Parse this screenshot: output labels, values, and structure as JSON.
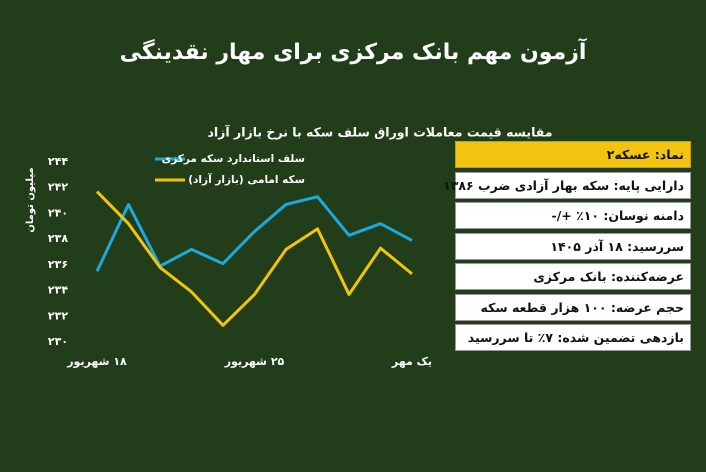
{
  "header": {
    "title": "آزمون مهم بانک مرکزی برای مهار نقدینگی"
  },
  "chart_data": {
    "type": "line",
    "title": "مقایسه قیمت معاملات اوراق سلف سکه با نرخ بازار آزاد",
    "y_label": "میلیون تومان",
    "categories": [
      "۱۸ شهریور",
      null,
      null,
      null,
      null,
      "۲۵ شهریور",
      null,
      null,
      null,
      null,
      "یک مهر"
    ],
    "series": [
      {
        "name": "سلف استاندارد سکه مرکزی",
        "color": "#1ba9df",
        "values": [
          235.5,
          240.7,
          235.9,
          237.2,
          236.1,
          238.6,
          240.7,
          241.3,
          238.3,
          239.2,
          237.9
        ]
      },
      {
        "name": "سکه امامی (بازار آزاد)",
        "color": "#f2c40f",
        "values": [
          241.7,
          239.2,
          235.8,
          233.9,
          231.3,
          233.7,
          237.2,
          238.8,
          233.7,
          237.3,
          235.3
        ]
      }
    ],
    "ylim": [
      230,
      244
    ],
    "yticks": [
      {
        "value": 230,
        "label": "۲۳۰"
      },
      {
        "value": 232,
        "label": "۲۳۲"
      },
      {
        "value": 234,
        "label": "۲۳۴"
      },
      {
        "value": 236,
        "label": "۲۳۶"
      },
      {
        "value": 238,
        "label": "۲۳۸"
      },
      {
        "value": 240,
        "label": "۲۴۰"
      },
      {
        "value": 242,
        "label": "۲۴۲"
      },
      {
        "value": 244,
        "label": "۲۴۴"
      }
    ]
  },
  "info": {
    "rows": [
      "نماد: عسکه۲",
      "دارایی پایه: سکه بهار آزادی ضرب ۱۳۸۶",
      "دامنه نوسان: ۱۰٪ +/-",
      "سررسید: ۱۸ آذر ۱۴۰۵",
      "عرضه‌کننده: بانک مرکزی",
      "حجم عرضه: ۱۰۰ هزار قطعه سکه",
      "بازدهی تضمین شده: ۷٪ تا سررسید"
    ]
  }
}
